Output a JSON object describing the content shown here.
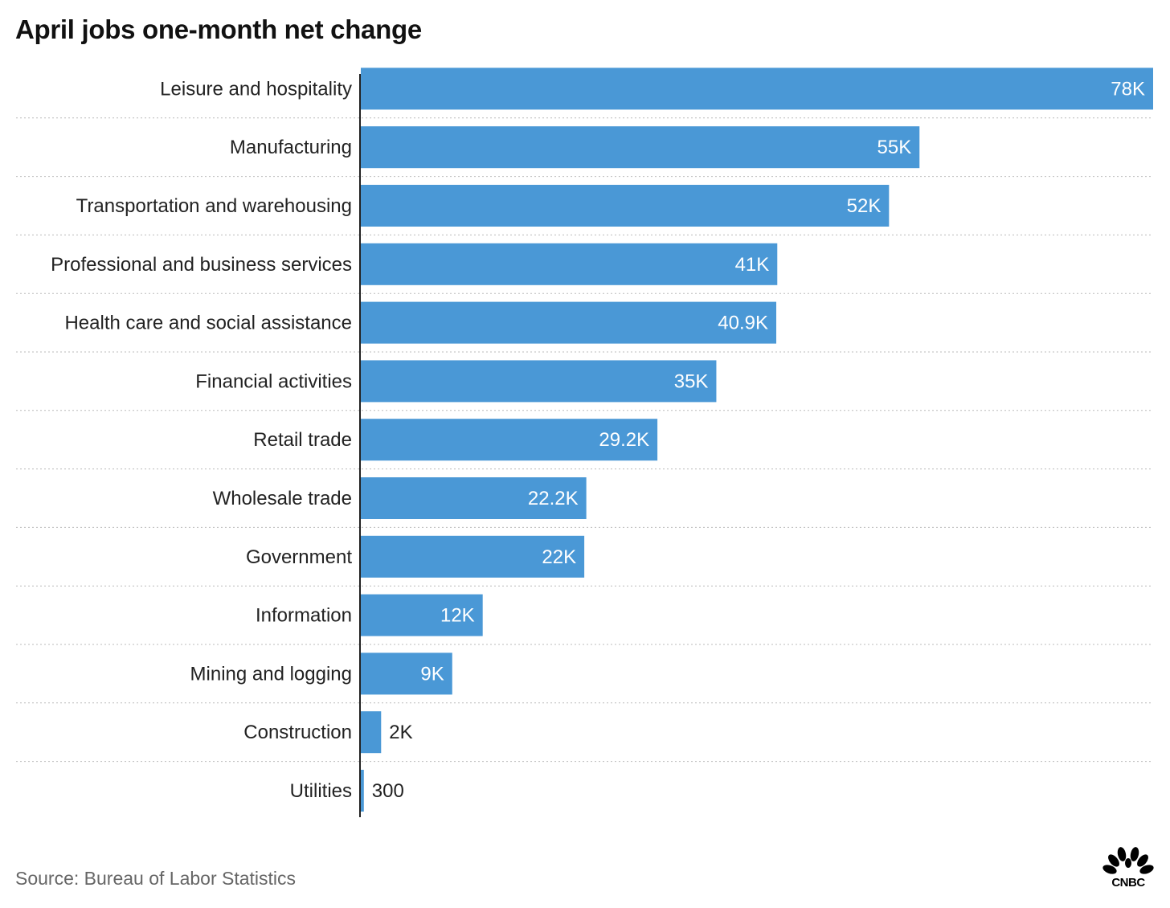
{
  "chart_data": {
    "type": "bar",
    "orientation": "horizontal",
    "title": "April jobs one-month net change",
    "categories": [
      "Leisure and hospitality",
      "Manufacturing",
      "Transportation and warehousing",
      "Professional and business services",
      "Health care and social assistance",
      "Financial activities",
      "Retail trade",
      "Wholesale trade",
      "Government",
      "Information",
      "Mining and logging",
      "Construction",
      "Utilities"
    ],
    "values": [
      78000,
      55000,
      52000,
      41000,
      40900,
      35000,
      29200,
      22200,
      22000,
      12000,
      9000,
      2000,
      300
    ],
    "data_labels": [
      "78K",
      "55K",
      "52K",
      "41K",
      "40.9K",
      "35K",
      "29.2K",
      "22.2K",
      "22K",
      "12K",
      "9K",
      "2K",
      "300"
    ],
    "xlim": [
      0,
      78000
    ],
    "grid": "dotted row separators",
    "bar_color": "#4a98d6",
    "axis_color": "#222222"
  },
  "source": "Source: Bureau of Labor Statistics",
  "logo": {
    "icon": "peacock-icon",
    "wordmark": "CNBC"
  }
}
